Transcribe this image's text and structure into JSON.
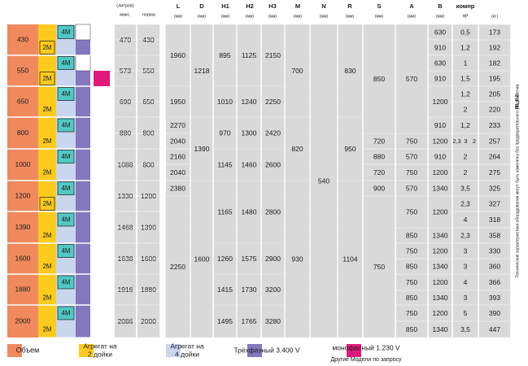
{
  "header": {
    "unit_litres": "(литров)",
    "max": "макс.",
    "norm": "норма",
    "cols": [
      "L",
      "D",
      "H1",
      "H2",
      "H3",
      "M",
      "N",
      "R",
      "S",
      "A",
      "B",
      "компр"
    ],
    "units": [
      "(мм)",
      "(мм)",
      "(мм)",
      "(мм)",
      "(мм)",
      "(мм)",
      "(мм)",
      "(мм)",
      "(мм)",
      "(мм)",
      "(мм)",
      "HP",
      "(кг.)"
    ]
  },
  "tags": {
    "m4": "4M",
    "m2": "2M"
  },
  "volumes": [
    "430",
    "550",
    "650",
    "800",
    "1000",
    "1200",
    "1390",
    "1600",
    "1880",
    "2000"
  ],
  "vol_max": [
    "470",
    "573",
    "690",
    "880",
    "1088",
    "1330",
    "1468",
    "1638",
    "1916",
    "2086"
  ],
  "vol_norm": [
    "430",
    "550",
    "650",
    "800",
    "800",
    "1200",
    "1390",
    "1600",
    "1880",
    "2000"
  ],
  "L": [
    "1960",
    "1950",
    "2270",
    "2040",
    "2160",
    "2040",
    "2380",
    "2250"
  ],
  "D": [
    "1218",
    "1390",
    "1600"
  ],
  "H1": [
    "895",
    "1010",
    "970",
    "1145",
    "1165",
    "1260",
    "1415",
    "1495"
  ],
  "H2": [
    "1125",
    "1240",
    "1300",
    "1460",
    "1480",
    "1575",
    "1730",
    "1765"
  ],
  "H3": [
    "2150",
    "2250",
    "2420",
    "2600",
    "2800",
    "2900",
    "3200",
    "3280"
  ],
  "M": [
    "700",
    "820",
    "930"
  ],
  "N": [
    "540"
  ],
  "R": [
    "830",
    "950",
    "1104"
  ],
  "S": [
    "850",
    "720",
    "880",
    "720",
    "900",
    "750"
  ],
  "A": [
    "570",
    "750",
    "570",
    "750",
    "570",
    "750",
    "850",
    "750",
    "850",
    "750",
    "850",
    "750",
    "850"
  ],
  "B": [
    "630",
    "910",
    "630",
    "910",
    "1200",
    "910",
    "1200",
    "910",
    "1200",
    "1340",
    "1200",
    "1340",
    "1200",
    "1340",
    "1200",
    "1340",
    "1200",
    "1340"
  ],
  "HP": [
    "0,5",
    "1,2",
    "1",
    "1,5",
    "1,2",
    "2",
    "1,2",
    "2,3",
    "3",
    "2",
    "2",
    "2",
    "3,5",
    "2,3",
    "4",
    "2,3",
    "3",
    "3",
    "4",
    "3",
    "5",
    "3,5",
    "5"
  ],
  "KG": [
    "173",
    "192",
    "182",
    "195",
    "205",
    "220",
    "233",
    "257",
    "264",
    "275",
    "325",
    "327",
    "318",
    "358",
    "330",
    "360",
    "366",
    "393",
    "390",
    "447"
  ],
  "side_note": "Технические характеристики оборудования могут быть изменены без предварительного уведомления.",
  "side_ref": "RL II 2",
  "legend": {
    "volume": "Объем",
    "unit2_l1": "Агрегат на",
    "unit2_l2": "2 дойки",
    "unit4_l1": "Агрегат на",
    "unit4_l2": "4 дойки",
    "three_phase": "Трёхфазный 3.400 V",
    "mono_phase": "монофасный 1.230 V",
    "other_models": "Другие Модели по запросу"
  },
  "colors": {
    "volume": "#f08a5d",
    "unit2": "#fccb1e",
    "unit4": "#c9d6ef",
    "three_phase": "#8477bd",
    "mono_phase": "#e2197c",
    "tag_bg": "#4fc9c4",
    "data_bg": "#d9d9d9"
  }
}
